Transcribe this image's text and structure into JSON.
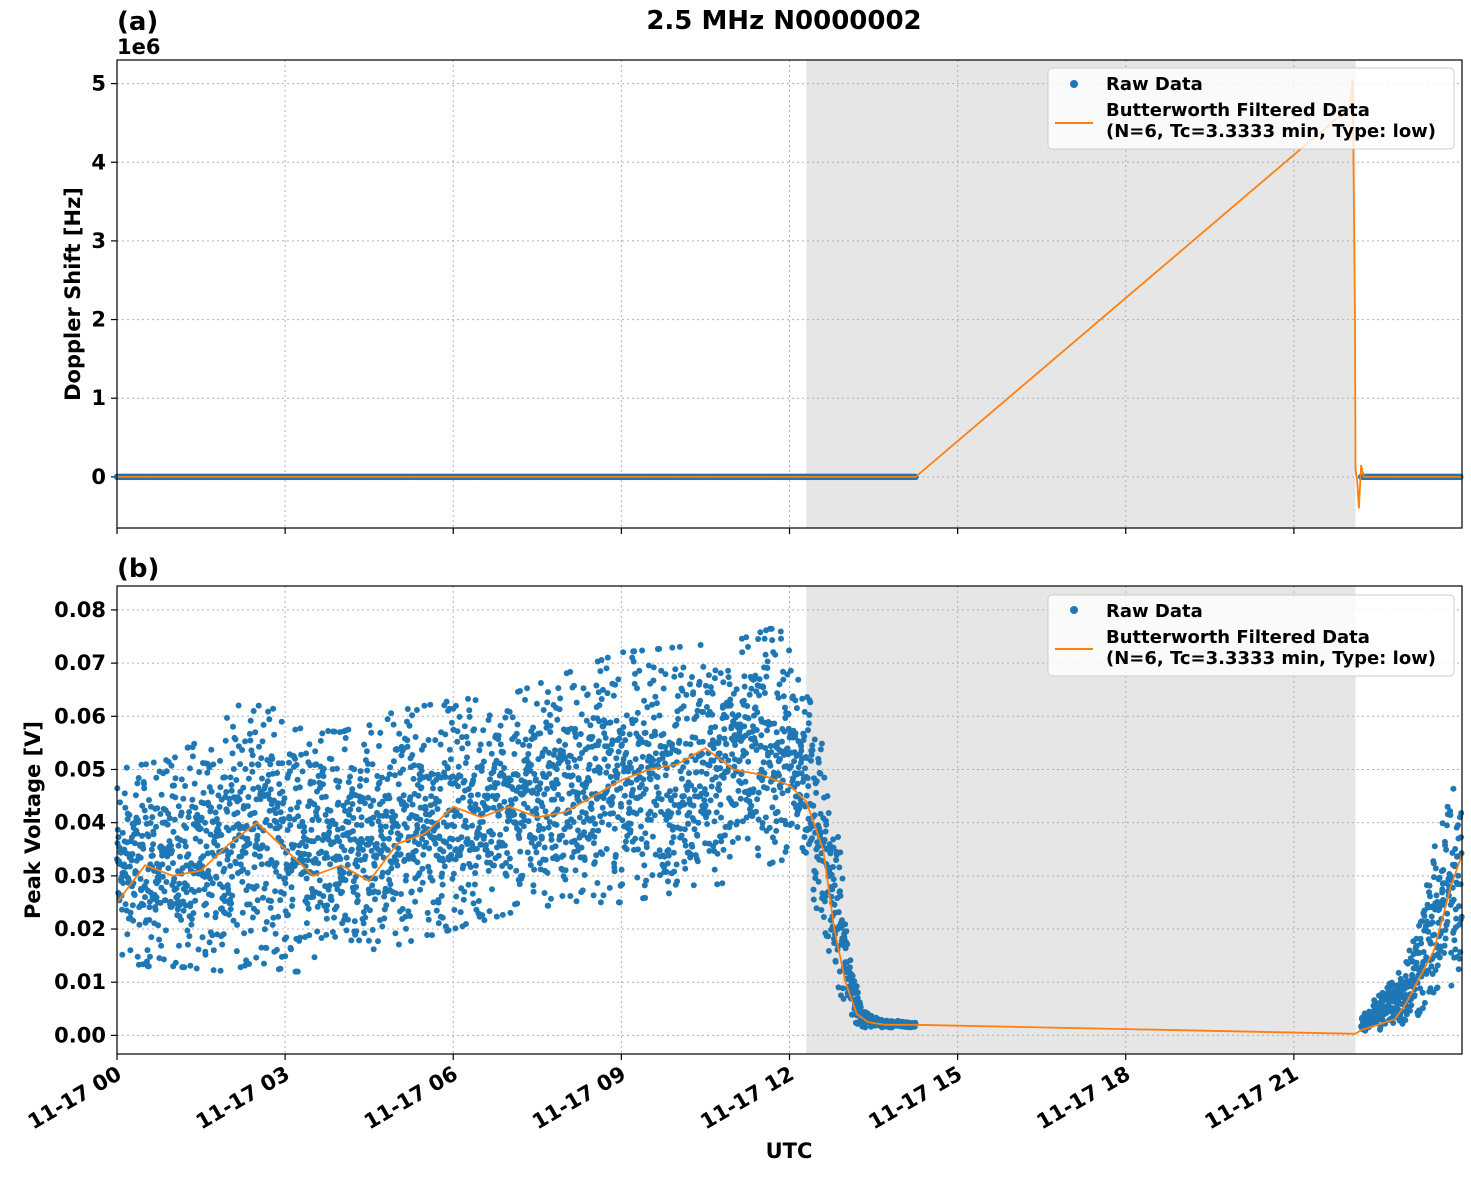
{
  "title": "2.5 MHz N0000002",
  "colors": {
    "raw": "#1f77b4",
    "filtered": "#ff7f0e",
    "shade": "#e6e6e6",
    "grid": "#b0b0b0"
  },
  "chart_data": [
    {
      "type": "scatter",
      "panel_label": "(a)",
      "ylabel": "Doppler Shift [Hz]",
      "offset_label": "1e6",
      "x_range": [
        "11-17 00:00",
        "11-18 00:00"
      ],
      "ylim": [
        -0.65,
        5.3
      ],
      "y_ticks": [
        0,
        1,
        2,
        3,
        4,
        5
      ],
      "y_tick_labels": [
        "0",
        "1",
        "2",
        "3",
        "4",
        "5"
      ],
      "shaded_interval": {
        "start_hour": 12.3,
        "end_hour": 22.1
      },
      "grid": true,
      "legend_position": "upper right",
      "legend": [
        "Raw Data",
        "Butterworth Filtered Data",
        "(N=6, Tc=3.3333 min, Type: low)"
      ],
      "series": [
        {
          "name": "Raw Data",
          "style": "dots",
          "segments": [
            {
              "hours": [
                0,
                14.25
              ],
              "value": 0
            },
            {
              "hours": [
                22.2,
                24
              ],
              "value": 0
            }
          ]
        },
        {
          "name": "Butterworth Filtered Data",
          "style": "line",
          "x_hours": [
            0,
            14.25,
            22.0,
            22.05,
            22.09,
            22.1,
            22.13,
            22.16,
            22.2,
            22.25,
            24
          ],
          "values": [
            0,
            0,
            4.7,
            5.05,
            2.0,
            0.1,
            -0.05,
            -0.4,
            0.15,
            0,
            0
          ]
        }
      ]
    },
    {
      "type": "scatter",
      "panel_label": "(b)",
      "ylabel": "Peak Voltage [V]",
      "xlabel": "UTC",
      "x_range": [
        "11-17 00:00",
        "11-18 00:00"
      ],
      "x_ticks_hours": [
        0,
        3,
        6,
        9,
        12,
        15,
        18,
        21
      ],
      "x_tick_labels": [
        "11-17 00",
        "11-17 03",
        "11-17 06",
        "11-17 09",
        "11-17 12",
        "11-17 15",
        "11-17 18",
        "11-17 21"
      ],
      "ylim": [
        -0.0035,
        0.0845
      ],
      "y_ticks": [
        0,
        0.01,
        0.02,
        0.03,
        0.04,
        0.05,
        0.06,
        0.07,
        0.08
      ],
      "y_tick_labels": [
        "0.00",
        "0.01",
        "0.02",
        "0.03",
        "0.04",
        "0.05",
        "0.06",
        "0.07",
        "0.08"
      ],
      "shaded_interval": {
        "start_hour": 12.3,
        "end_hour": 22.1
      },
      "grid": true,
      "legend_position": "upper right",
      "legend": [
        "Raw Data",
        "Butterworth Filtered Data",
        "(N=6, Tc=3.3333 min, Type: low)"
      ],
      "series": [
        {
          "name": "Raw Data",
          "style": "dots",
          "envelope_hours": [
            0,
            1,
            2,
            2.5,
            3,
            4,
            5,
            6,
            7,
            8,
            9,
            10,
            11,
            11.8,
            12.3,
            12.6,
            12.9,
            13.1,
            13.3,
            13.6,
            14.25,
            22.2,
            22.5,
            23,
            23.5,
            24
          ],
          "envelope_low": [
            0.013,
            0.013,
            0.012,
            0.014,
            0.012,
            0.012,
            0.017,
            0.02,
            0.023,
            0.025,
            0.025,
            0.027,
            0.029,
            0.033,
            0.03,
            0.02,
            0.008,
            0.003,
            0.0015,
            0.0015,
            0.0015,
            0.0005,
            0.001,
            0.002,
            0.005,
            0.012
          ],
          "envelope_high": [
            0.05,
            0.052,
            0.06,
            0.066,
            0.058,
            0.057,
            0.061,
            0.063,
            0.064,
            0.068,
            0.072,
            0.073,
            0.074,
            0.077,
            0.065,
            0.055,
            0.035,
            0.015,
            0.005,
            0.003,
            0.0025,
            0.003,
            0.008,
            0.015,
            0.035,
            0.055
          ]
        },
        {
          "name": "Butterworth Filtered Data",
          "style": "line",
          "x_hours": [
            0,
            0.5,
            1,
            1.5,
            2,
            2.5,
            3,
            3.5,
            4,
            4.5,
            5,
            5.5,
            6,
            6.5,
            7,
            7.5,
            8,
            8.5,
            9,
            9.5,
            10,
            10.5,
            11,
            11.5,
            12,
            12.3,
            12.6,
            12.8,
            13,
            13.2,
            13.4,
            13.7,
            14.25,
            22.1,
            22.2,
            22.5,
            22.8,
            23,
            23.2,
            23.5,
            23.8,
            24
          ],
          "values": [
            0.025,
            0.032,
            0.03,
            0.031,
            0.036,
            0.04,
            0.035,
            0.03,
            0.032,
            0.029,
            0.036,
            0.038,
            0.043,
            0.041,
            0.043,
            0.041,
            0.042,
            0.045,
            0.048,
            0.05,
            0.051,
            0.054,
            0.05,
            0.049,
            0.047,
            0.044,
            0.035,
            0.02,
            0.01,
            0.004,
            0.0025,
            0.002,
            0.002,
            0.0003,
            0.001,
            0.002,
            0.003,
            0.006,
            0.01,
            0.016,
            0.028,
            0.034
          ]
        }
      ]
    }
  ]
}
